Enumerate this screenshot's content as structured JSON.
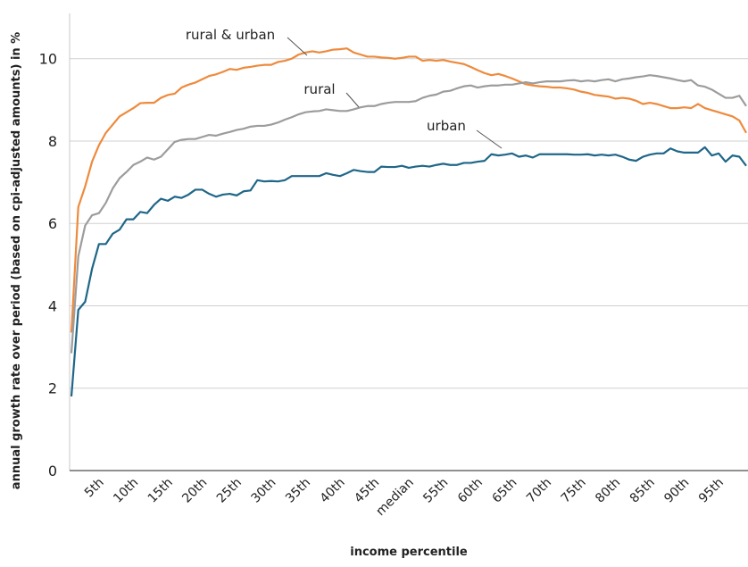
{
  "chart_data": {
    "type": "line",
    "x_label": "income percentile",
    "y_label": "annual growth rate over period (based on cpi-adjusted amounts) in %",
    "categories": [
      null,
      null,
      null,
      null,
      "5th",
      null,
      null,
      null,
      null,
      "10th",
      null,
      null,
      null,
      null,
      "15th",
      null,
      null,
      null,
      null,
      "20th",
      null,
      null,
      null,
      null,
      "25th",
      null,
      null,
      null,
      null,
      "30th",
      null,
      null,
      null,
      null,
      "35th",
      null,
      null,
      null,
      null,
      "40th",
      null,
      null,
      null,
      null,
      "45th",
      null,
      null,
      null,
      null,
      "median",
      null,
      null,
      null,
      null,
      "55th",
      null,
      null,
      null,
      null,
      "60th",
      null,
      null,
      null,
      null,
      "65th",
      null,
      null,
      null,
      null,
      "70th",
      null,
      null,
      null,
      null,
      "75th",
      null,
      null,
      null,
      null,
      "80th",
      null,
      null,
      null,
      null,
      "85th",
      null,
      null,
      null,
      null,
      "90th",
      null,
      null,
      null,
      null,
      "95th",
      null,
      null,
      null,
      null
    ],
    "ylim": [
      0,
      11.1
    ],
    "yticks": [
      0,
      2,
      4,
      6,
      8,
      10
    ],
    "grid": true,
    "series": [
      {
        "name": "rural & urban",
        "color": "#ee8a3c",
        "values": [
          3.35,
          6.4,
          6.9,
          7.5,
          7.9,
          8.2,
          8.4,
          8.6,
          8.7,
          8.8,
          8.92,
          8.93,
          8.93,
          9.05,
          9.12,
          9.15,
          9.3,
          9.37,
          9.42,
          9.5,
          9.58,
          9.62,
          9.68,
          9.75,
          9.73,
          9.78,
          9.8,
          9.83,
          9.85,
          9.85,
          9.92,
          9.95,
          10.0,
          10.1,
          10.15,
          10.18,
          10.15,
          10.18,
          10.22,
          10.23,
          10.25,
          10.15,
          10.1,
          10.05,
          10.05,
          10.03,
          10.02,
          10.0,
          10.02,
          10.05,
          10.05,
          9.95,
          9.97,
          9.95,
          9.97,
          9.93,
          9.9,
          9.87,
          9.8,
          9.72,
          9.65,
          9.6,
          9.63,
          9.58,
          9.52,
          9.45,
          9.38,
          9.35,
          9.33,
          9.32,
          9.3,
          9.3,
          9.28,
          9.25,
          9.2,
          9.17,
          9.12,
          9.1,
          9.08,
          9.03,
          9.05,
          9.03,
          8.98,
          8.9,
          8.93,
          8.9,
          8.85,
          8.8,
          8.8,
          8.82,
          8.8,
          8.9,
          8.8,
          8.75,
          8.7,
          8.65,
          8.6,
          8.5,
          8.2
        ]
      },
      {
        "name": "rural",
        "color": "#9c9c9c",
        "values": [
          2.85,
          5.2,
          5.95,
          6.2,
          6.25,
          6.5,
          6.85,
          7.1,
          7.25,
          7.42,
          7.5,
          7.6,
          7.55,
          7.62,
          7.8,
          7.98,
          8.03,
          8.05,
          8.05,
          8.1,
          8.15,
          8.13,
          8.18,
          8.22,
          8.27,
          8.3,
          8.35,
          8.37,
          8.37,
          8.4,
          8.45,
          8.52,
          8.58,
          8.65,
          8.7,
          8.72,
          8.73,
          8.77,
          8.75,
          8.73,
          8.73,
          8.77,
          8.82,
          8.85,
          8.85,
          8.9,
          8.93,
          8.95,
          8.95,
          8.95,
          8.97,
          9.05,
          9.1,
          9.13,
          9.2,
          9.22,
          9.28,
          9.33,
          9.35,
          9.3,
          9.33,
          9.35,
          9.35,
          9.37,
          9.37,
          9.4,
          9.43,
          9.4,
          9.43,
          9.45,
          9.45,
          9.45,
          9.47,
          9.48,
          9.45,
          9.47,
          9.45,
          9.48,
          9.5,
          9.45,
          9.5,
          9.52,
          9.55,
          9.57,
          9.6,
          9.58,
          9.55,
          9.52,
          9.48,
          9.45,
          9.48,
          9.35,
          9.32,
          9.25,
          9.15,
          9.05,
          9.05,
          9.1,
          8.85
        ]
      },
      {
        "name": "urban",
        "color": "#1f6688",
        "values": [
          1.8,
          3.9,
          4.1,
          4.9,
          5.5,
          5.5,
          5.75,
          5.85,
          6.1,
          6.1,
          6.28,
          6.25,
          6.45,
          6.6,
          6.55,
          6.65,
          6.62,
          6.7,
          6.82,
          6.82,
          6.72,
          6.65,
          6.7,
          6.72,
          6.68,
          6.78,
          6.8,
          7.05,
          7.02,
          7.03,
          7.02,
          7.05,
          7.15,
          7.15,
          7.15,
          7.15,
          7.15,
          7.22,
          7.18,
          7.15,
          7.22,
          7.3,
          7.27,
          7.25,
          7.25,
          7.38,
          7.37,
          7.37,
          7.4,
          7.35,
          7.38,
          7.4,
          7.38,
          7.42,
          7.45,
          7.42,
          7.42,
          7.47,
          7.47,
          7.5,
          7.52,
          7.68,
          7.65,
          7.67,
          7.7,
          7.62,
          7.65,
          7.6,
          7.68,
          7.68,
          7.68,
          7.68,
          7.68,
          7.67,
          7.67,
          7.68,
          7.65,
          7.67,
          7.65,
          7.67,
          7.62,
          7.55,
          7.52,
          7.62,
          7.67,
          7.7,
          7.7,
          7.82,
          7.75,
          7.72,
          7.72,
          7.72,
          7.85,
          7.65,
          7.7,
          7.5,
          7.65,
          7.62,
          7.4
        ]
      }
    ]
  }
}
